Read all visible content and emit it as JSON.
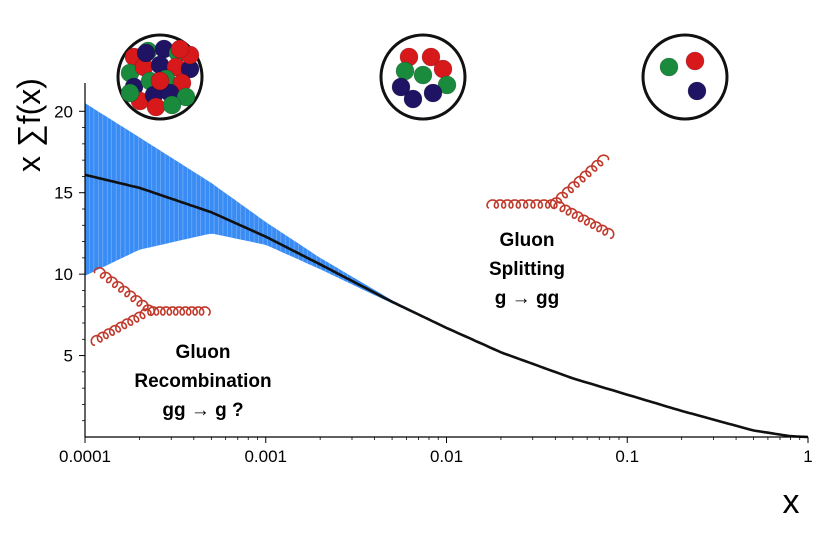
{
  "chart_data": {
    "type": "area",
    "xscale": "log",
    "xlim": [
      0.0001,
      1
    ],
    "ylim": [
      0,
      21
    ],
    "xlabel": "x",
    "ylabel": "x ∑f(x)",
    "xticks": [
      {
        "value": 0.0001,
        "label": "0.0001"
      },
      {
        "value": 0.001,
        "label": "0.001"
      },
      {
        "value": 0.01,
        "label": "0.01"
      },
      {
        "value": 0.1,
        "label": "0.1"
      },
      {
        "value": 1,
        "label": "1"
      }
    ],
    "yticks": [
      {
        "value": 5,
        "label": "5"
      },
      {
        "value": 10,
        "label": "10"
      },
      {
        "value": 15,
        "label": "15"
      },
      {
        "value": 20,
        "label": "20"
      }
    ],
    "series": [
      {
        "kind": "central-line",
        "color": "#111111",
        "x": [
          0.0001,
          0.0002,
          0.0005,
          0.001,
          0.002,
          0.005,
          0.01,
          0.02,
          0.05,
          0.1,
          0.2,
          0.5,
          0.8,
          1
        ],
        "y": [
          16.1,
          15.3,
          13.8,
          12.3,
          10.6,
          8.3,
          6.7,
          5.2,
          3.6,
          2.6,
          1.6,
          0.4,
          0.05,
          0.0
        ]
      },
      {
        "kind": "uncertainty-band",
        "color": "#3a8cf5",
        "x": [
          0.0001,
          0.0002,
          0.0005,
          0.001,
          0.002,
          0.005,
          0.01,
          0.02,
          0.05,
          0.1,
          0.2
        ],
        "y_upper": [
          20.5,
          18.4,
          15.6,
          13.2,
          11.0,
          8.4,
          6.75,
          5.25,
          3.62,
          2.62,
          1.62
        ],
        "y_lower": [
          9.9,
          11.5,
          12.5,
          11.8,
          10.3,
          8.2,
          6.65,
          5.15,
          3.58,
          2.58,
          1.58
        ]
      }
    ],
    "annotations": {
      "splitting": [
        "Gluon",
        "Splitting",
        "g → gg"
      ],
      "recombination": [
        "Gluon",
        "Recombination",
        "gg → g ?"
      ]
    },
    "proton_icons": [
      {
        "name": "dense-proton-icon",
        "balls": 24
      },
      {
        "name": "medium-proton-icon",
        "balls": 9
      },
      {
        "name": "sparse-proton-icon",
        "balls": 3
      }
    ],
    "colors": {
      "band": "#3a8cf5",
      "line": "#111111",
      "gluon": "#c0392b",
      "quark_red": "#d7191c",
      "quark_green": "#1a8a3c",
      "quark_blue": "#1f1463"
    }
  }
}
